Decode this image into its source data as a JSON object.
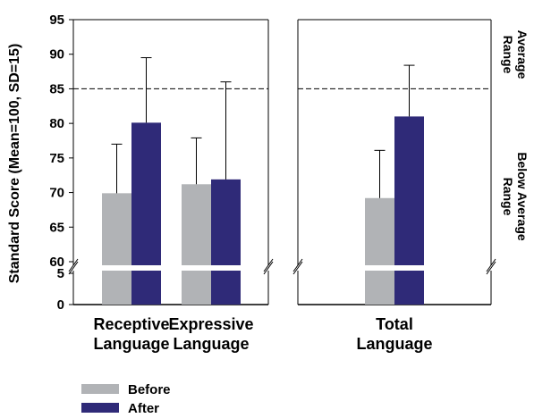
{
  "chart_data": {
    "type": "bar",
    "ylabel": "Standard Score (Mean=100, SD=15)",
    "y_ticks_upper": [
      "95",
      "90",
      "85",
      "80",
      "75",
      "70",
      "65",
      "60"
    ],
    "y_ticks_lower": [
      "5",
      "0"
    ],
    "ylim_upper": [
      60,
      95
    ],
    "ylim_lower": [
      0,
      5
    ],
    "axis_break": true,
    "reference_line": 85,
    "categories": [
      {
        "label": [
          "Receptive",
          "Language"
        ],
        "panel": 0
      },
      {
        "label": [
          "Expressive",
          "Language"
        ],
        "panel": 0
      },
      {
        "label": [
          "Total",
          "Language"
        ],
        "panel": 1
      }
    ],
    "series": [
      {
        "name": "Before",
        "color": "#b1b3b6",
        "values": [
          69.9,
          71.2,
          69.2
        ],
        "error_upper": [
          77.0,
          77.9,
          76.1
        ]
      },
      {
        "name": "After",
        "color": "#2f2a78",
        "values": [
          80.1,
          71.9,
          81.0
        ],
        "error_upper": [
          89.5,
          86.0,
          88.4
        ]
      }
    ],
    "side_labels": {
      "upper": [
        "Average",
        "Range"
      ],
      "lower": [
        "Below Average",
        "Range"
      ]
    }
  }
}
